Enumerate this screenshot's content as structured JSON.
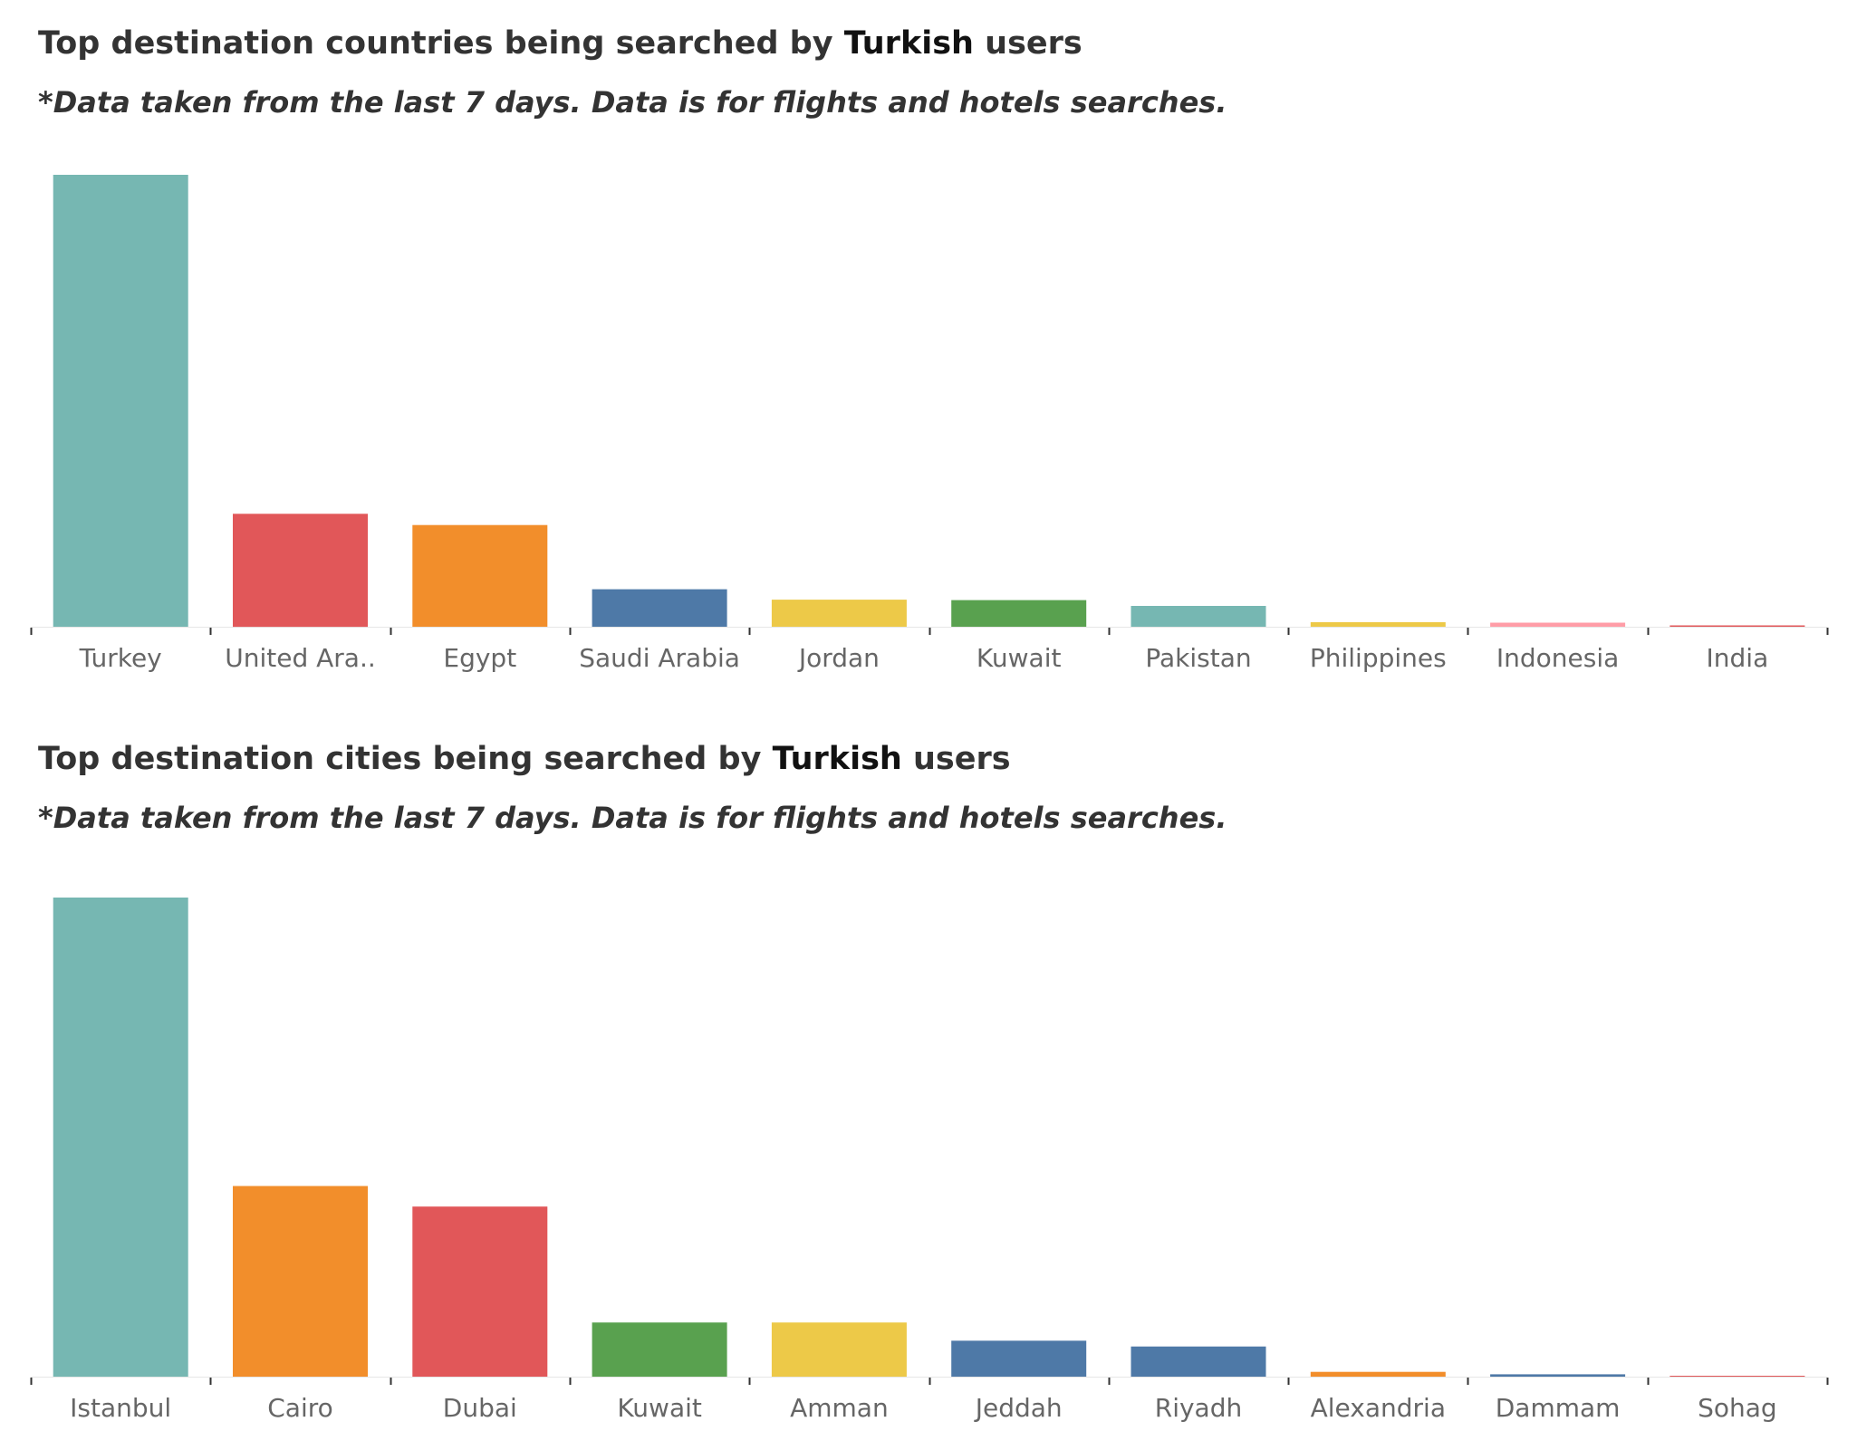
{
  "chart_data": [
    {
      "type": "bar",
      "title_parts": {
        "before": "Top destination countries being searched by ",
        "emph": "Turkish",
        "after": " users"
      },
      "subtitle": "*Data taken from the last 7 days. Data is for flights and hotels searches.",
      "categories": [
        "Turkey",
        "United Ara..",
        "Egypt",
        "Saudi Arabia",
        "Jordan",
        "Kuwait",
        "Pakistan",
        "Philippines",
        "Indonesia",
        "India"
      ],
      "values": [
        100,
        25,
        22.5,
        8.3,
        6,
        5.9,
        4.6,
        1,
        0.9,
        0.3
      ],
      "colors": [
        "#76b7b2",
        "#e15759",
        "#f28e2b",
        "#4e79a7",
        "#edc948",
        "#59a14f",
        "#76b7b2",
        "#edc948",
        "#ff9da7",
        "#e15759"
      ],
      "ylim": [
        0,
        100
      ],
      "grid": false,
      "xlabel": "",
      "ylabel": ""
    },
    {
      "type": "bar",
      "title_parts": {
        "before": "Top destination cities being searched by ",
        "emph": "Turkish",
        "after": " users"
      },
      "subtitle": "*Data taken from the last 7 days. Data is for flights and hotels searches.",
      "categories": [
        "Istanbul",
        "Cairo",
        "Dubai",
        "Kuwait",
        "Amman",
        "Jeddah",
        "Riyadh",
        "Alexandria",
        "Dammam",
        "Sohag"
      ],
      "values": [
        100,
        39.8,
        35.5,
        11.3,
        11.3,
        7.5,
        6.3,
        1,
        0.5,
        0.1
      ],
      "colors": [
        "#76b7b2",
        "#f28e2b",
        "#e15759",
        "#59a14f",
        "#edc948",
        "#4e79a7",
        "#4e79a7",
        "#f28e2b",
        "#4e79a7",
        "#e15759"
      ],
      "ylim": [
        0,
        100
      ],
      "grid": false,
      "xlabel": "",
      "ylabel": ""
    }
  ]
}
